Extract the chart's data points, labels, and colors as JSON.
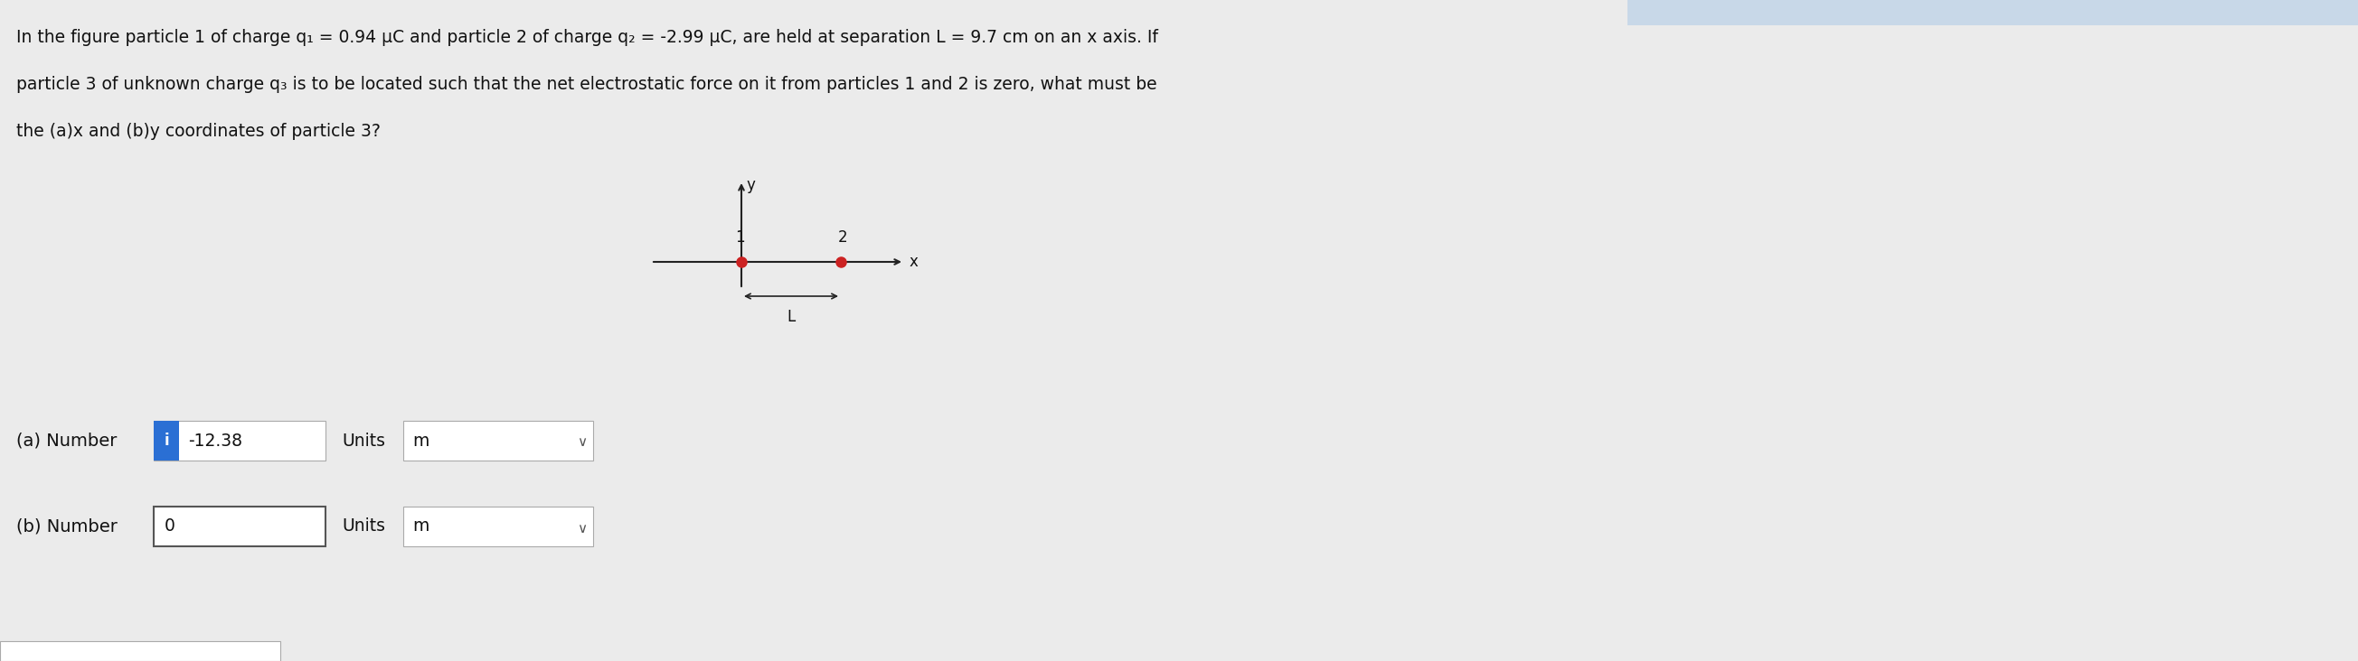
{
  "bg_color": "#ebebeb",
  "top_bar_color": "#c8d8e8",
  "title_lines": [
    "In the figure particle 1 of charge q₁ = 0.94 μC and particle 2 of charge q₂ = -2.99 μC, are held at separation L = 9.7 cm on an x axis. If",
    "particle 3 of unknown charge q₃ is to be located such that the net electrostatic force on it from particles 1 and 2 is zero, what must be",
    "the (a)x and (b)y coordinates of particle 3?"
  ],
  "ans_a_label": "(a) Number",
  "ans_a_value": "-12.38",
  "ans_a_units_label": "Units",
  "ans_a_units_value": "m",
  "ans_b_label": "(b) Number",
  "ans_b_value": "0",
  "ans_b_units_label": "Units",
  "ans_b_units_value": "m",
  "info_btn_color": "#2a6fd4",
  "info_btn_text": "i",
  "text_color": "#111111",
  "dot_color": "#cc2222",
  "axis_color": "#222222",
  "label_1": "1",
  "label_2": "2",
  "label_L": "L",
  "label_x": "x",
  "label_y": "y",
  "title_fontsize": 13.5,
  "ans_label_fontsize": 14.0,
  "ans_value_fontsize": 13.5,
  "units_fontsize": 13.5
}
